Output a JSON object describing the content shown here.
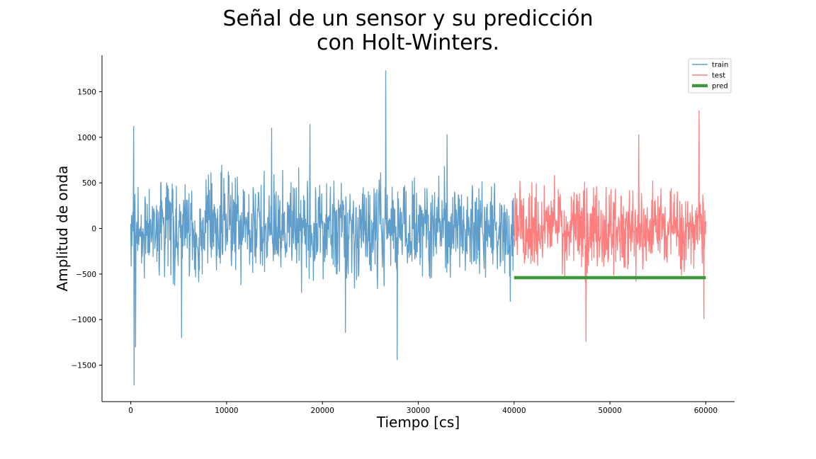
{
  "title_line1": "Señal de un sensor y su predicción",
  "title_line2": "con Holt-Winters.",
  "chart_data": {
    "type": "line",
    "xlabel": "Tiempo [cs]",
    "ylabel": "Amplitud de onda",
    "xlim": [
      -3000,
      63000
    ],
    "ylim": [
      -1900,
      1900
    ],
    "x_ticks": [
      0,
      10000,
      20000,
      30000,
      40000,
      50000,
      60000
    ],
    "x_tick_labels": [
      "0",
      "10000",
      "20000",
      "30000",
      "40000",
      "50000",
      "60000"
    ],
    "y_ticks": [
      1500,
      1000,
      500,
      0,
      -500,
      -1000,
      -1500
    ],
    "y_tick_labels": [
      "1500",
      "1000",
      "500",
      "0",
      "−500",
      "−1000",
      "−1500"
    ],
    "grid": false,
    "legend_position": "top-right",
    "series": [
      {
        "name": "train",
        "color": "#5f9ecb",
        "x_range": [
          0,
          40000
        ],
        "typical_range": [
          -650,
          650
        ],
        "peaks": [
          {
            "x": 300,
            "y": 1120
          },
          {
            "x": 350,
            "y": -1720
          },
          {
            "x": 500,
            "y": -1300
          },
          {
            "x": 5300,
            "y": -1200
          },
          {
            "x": 14700,
            "y": 1100
          },
          {
            "x": 18700,
            "y": 1140
          },
          {
            "x": 22400,
            "y": -1140
          },
          {
            "x": 26600,
            "y": 1730
          },
          {
            "x": 27800,
            "y": -1440
          },
          {
            "x": 33000,
            "y": 1030
          },
          {
            "x": 39600,
            "y": -800
          }
        ]
      },
      {
        "name": "test",
        "color": "#ff7f7f",
        "x_range": [
          40000,
          60000
        ],
        "typical_range": [
          -550,
          550
        ],
        "peaks": [
          {
            "x": 47500,
            "y": -1240
          },
          {
            "x": 53000,
            "y": 1030
          },
          {
            "x": 59300,
            "y": 1290
          },
          {
            "x": 59800,
            "y": -990
          }
        ]
      },
      {
        "name": "pred",
        "color": "#3a9a3a",
        "x": [
          40000,
          60000
        ],
        "y": [
          -540,
          -540
        ]
      }
    ]
  }
}
